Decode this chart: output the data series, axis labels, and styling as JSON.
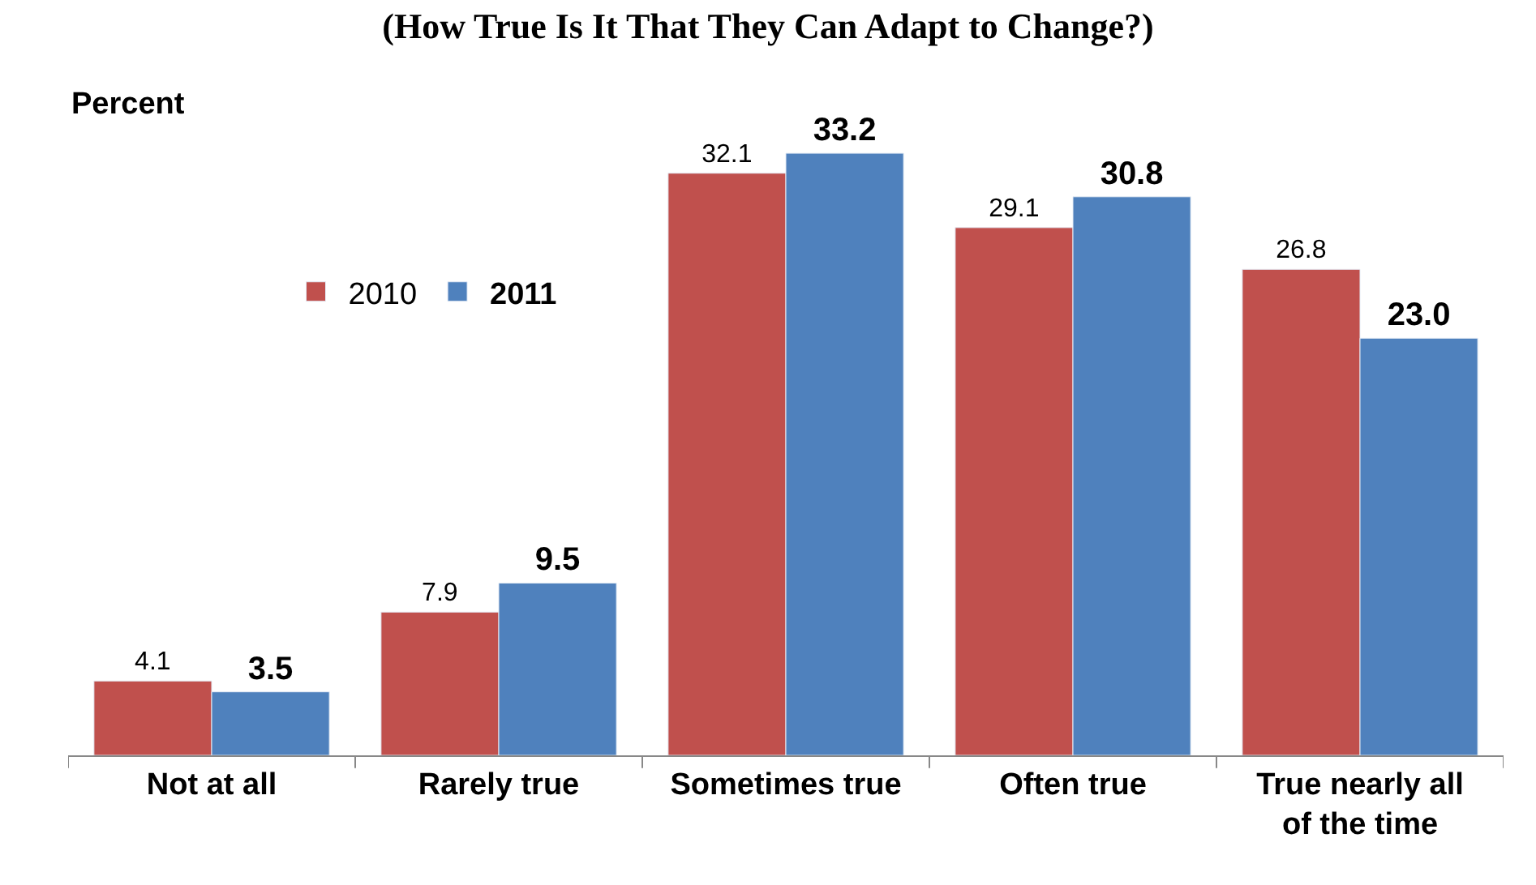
{
  "chart_data": {
    "type": "bar",
    "title": "(How True Is It That They Can Adapt to Change?)",
    "ylabel": "Percent",
    "categories": [
      "Not at all",
      "Rarely true",
      "Sometimes true",
      "Often true",
      "True nearly all of the time"
    ],
    "series": [
      {
        "name": "2010",
        "color": "#c0504d",
        "values": [
          4.1,
          7.9,
          32.1,
          29.1,
          26.8
        ],
        "value_labels": [
          "4.1",
          "7.9",
          "32.1",
          "29.1",
          "26.8"
        ]
      },
      {
        "name": "2011",
        "color": "#4f81bd",
        "values": [
          3.5,
          9.5,
          33.2,
          30.8,
          23.0
        ],
        "value_labels": [
          "3.5",
          "9.5",
          "33.2",
          "30.8",
          "23.0"
        ]
      }
    ],
    "legend": "top left"
  }
}
